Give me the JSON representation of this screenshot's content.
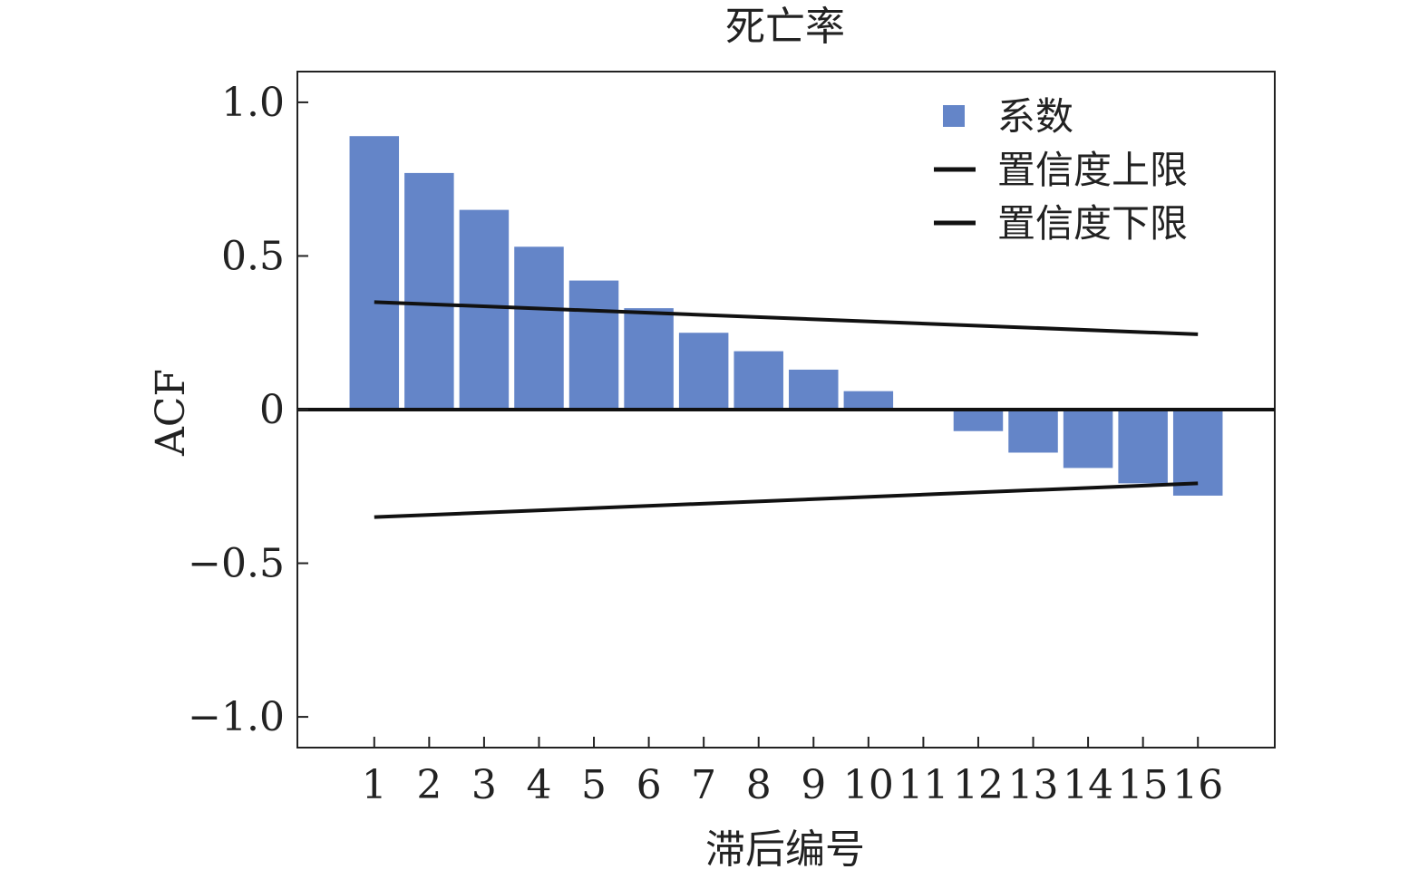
{
  "chart_data": {
    "type": "bar",
    "title": "死亡率",
    "xlabel": "滞后编号",
    "ylabel": "ACF",
    "categories": [
      "1",
      "2",
      "3",
      "4",
      "5",
      "6",
      "7",
      "8",
      "9",
      "10",
      "11",
      "12",
      "13",
      "14",
      "15",
      "16"
    ],
    "x": [
      1,
      2,
      3,
      4,
      5,
      6,
      7,
      8,
      9,
      10,
      11,
      12,
      13,
      14,
      15,
      16
    ],
    "series": [
      {
        "name": "系数",
        "type": "bar",
        "color": "#6485c8",
        "values": [
          0.89,
          0.77,
          0.65,
          0.53,
          0.42,
          0.33,
          0.25,
          0.19,
          0.13,
          0.06,
          0.0,
          -0.07,
          -0.14,
          -0.19,
          -0.24,
          -0.28
        ]
      },
      {
        "name": "置信度上限",
        "type": "line",
        "color": "#111111",
        "x": [
          1,
          16
        ],
        "values": [
          0.35,
          0.245
        ]
      },
      {
        "name": "置信度下限",
        "type": "line",
        "color": "#111111",
        "x": [
          1,
          16
        ],
        "values": [
          -0.35,
          -0.24
        ]
      }
    ],
    "ylim": [
      -1.1,
      1.1
    ],
    "yticks": [
      1.0,
      0.5,
      0,
      -0.5,
      -1.0
    ],
    "ytick_labels": [
      "1.0",
      "0.5",
      "0",
      "−0.5",
      "−1.0"
    ],
    "xlim": [
      -0.4,
      17.4
    ],
    "zero_line": true,
    "legend_position": "top-right",
    "grid": false
  }
}
